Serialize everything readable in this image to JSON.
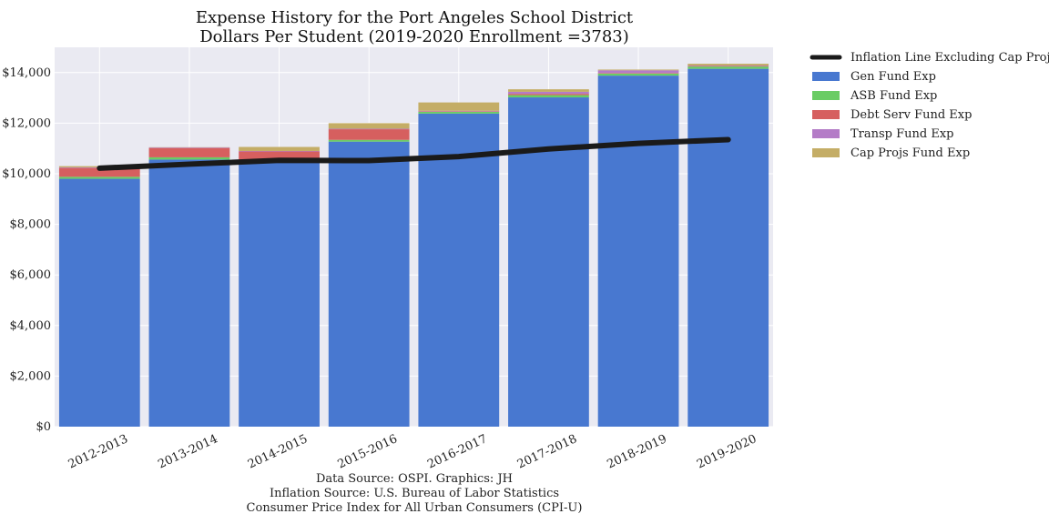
{
  "chart_data": {
    "type": "bar",
    "stacked": true,
    "title": [
      "Expense History for the Port Angeles School District",
      "Dollars Per Student (2019-2020 Enrollment =3783)"
    ],
    "categories": [
      "2012-2013",
      "2013-2014",
      "2014-2015",
      "2015-2016",
      "2016-2017",
      "2017-2018",
      "2018-2019",
      "2019-2020"
    ],
    "ylim": [
      0,
      15000
    ],
    "yticks": [
      0,
      2000,
      4000,
      6000,
      8000,
      10000,
      12000,
      14000
    ],
    "ytick_labels": [
      "$0",
      "$2,000",
      "$4,000",
      "$6,000",
      "$8,000",
      "$10,000",
      "$12,000",
      "$14,000"
    ],
    "grid": true,
    "legend_position": "outside-right",
    "series": [
      {
        "name": "Gen Fund Exp",
        "color": "#4878d0",
        "values": [
          9800,
          10560,
          10470,
          11270,
          12380,
          13020,
          13880,
          14150
        ]
      },
      {
        "name": "ASB Fund Exp",
        "color": "#6acc64",
        "values": [
          80,
          90,
          80,
          70,
          70,
          90,
          80,
          90
        ]
      },
      {
        "name": "Debt Serv Fund Exp",
        "color": "#d65f5f",
        "values": [
          350,
          370,
          330,
          420,
          20,
          50,
          20,
          20
        ]
      },
      {
        "name": "Transp Fund Exp",
        "color": "#b47cc7",
        "values": [
          20,
          20,
          20,
          20,
          20,
          80,
          110,
          20
        ]
      },
      {
        "name": "Cap Projs Fund Exp",
        "color": "#c4ad66",
        "values": [
          50,
          10,
          160,
          220,
          330,
          100,
          30,
          70
        ]
      }
    ],
    "line_series": {
      "name": "Inflation Line Excluding Cap Projs",
      "color": "#1a1a1a",
      "values": [
        10220,
        10380,
        10530,
        10520,
        10680,
        10980,
        11200,
        11350
      ]
    },
    "annotations": [
      "Data Source: OSPI. Graphics: JH",
      "Inflation Source: U.S. Bureau of Labor Statistics",
      "Consumer Price Index for All Urban Consumers (CPI-U)"
    ]
  }
}
